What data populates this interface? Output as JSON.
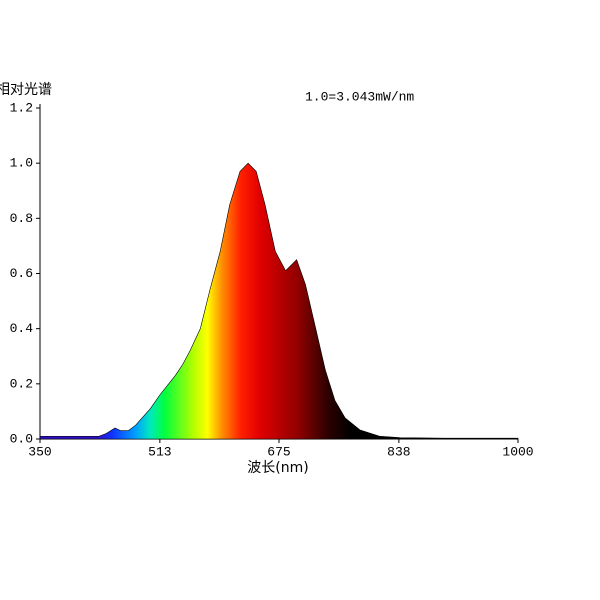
{
  "chart_data": {
    "type": "area",
    "ylabel": "相对光谱",
    "annotation": "1.0=3.043mW/nm",
    "xlabel": "波长(nm)",
    "x": [
      350,
      380,
      410,
      430,
      440,
      452,
      460,
      470,
      480,
      490,
      500,
      513,
      525,
      534,
      544,
      554,
      568,
      581,
      595,
      608,
      622,
      633,
      644,
      656,
      670,
      684,
      699,
      711,
      725,
      738,
      751,
      765,
      785,
      812,
      840,
      900,
      950,
      1000
    ],
    "values": [
      0.01,
      0.01,
      0.01,
      0.01,
      0.02,
      0.04,
      0.03,
      0.03,
      0.05,
      0.08,
      0.11,
      0.16,
      0.2,
      0.23,
      0.27,
      0.32,
      0.4,
      0.54,
      0.68,
      0.85,
      0.97,
      1.0,
      0.97,
      0.85,
      0.68,
      0.61,
      0.65,
      0.56,
      0.4,
      0.25,
      0.14,
      0.076,
      0.033,
      0.01,
      0.005,
      0.003,
      0.003,
      0.003
    ],
    "xlim": [
      350,
      1000
    ],
    "xticks": [
      350,
      513,
      675,
      838,
      1000
    ],
    "ylim": [
      0,
      1.2
    ],
    "yticks": [
      {
        "value": 0,
        "label": "0.0"
      },
      0.2,
      0.4,
      0.6,
      0.8,
      {
        "value": 1,
        "label": "1.0"
      },
      1.2
    ]
  }
}
